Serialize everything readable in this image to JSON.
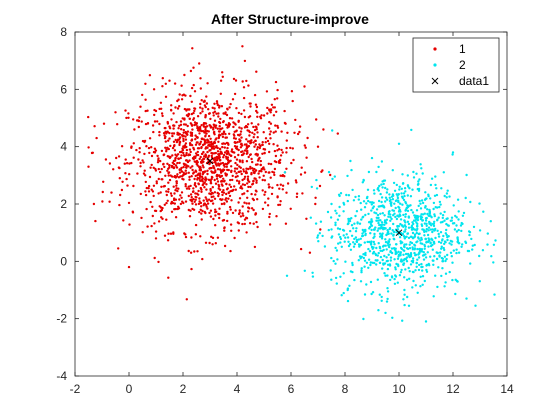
{
  "chart_data": {
    "type": "scatter",
    "title": "After Structure-improve",
    "xlabel": "",
    "ylabel": "",
    "xlim": [
      -2,
      14
    ],
    "ylim": [
      -4,
      8
    ],
    "xticks": [
      -2,
      0,
      2,
      4,
      6,
      8,
      10,
      12,
      14
    ],
    "yticks": [
      -4,
      -2,
      0,
      2,
      4,
      6,
      8
    ],
    "grid": false,
    "legend_position": "top-right",
    "series": [
      {
        "name": "1",
        "color": "#e60000",
        "marker": "dot",
        "count": 1500,
        "center": [
          3.0,
          3.5
        ],
        "spread": [
          1.5,
          1.2
        ],
        "points": [
          [
            -1.5,
            3.3
          ],
          [
            -1.2,
            4.3
          ],
          [
            -1.3,
            2.0
          ],
          [
            0.0,
            -0.2
          ],
          [
            -0.5,
            5.2
          ],
          [
            0.2,
            4.6
          ],
          [
            1.5,
            6.3
          ],
          [
            2.6,
            6.9
          ],
          [
            4.2,
            7.5
          ],
          [
            6.5,
            6.1
          ],
          [
            7.2,
            4.6
          ],
          [
            7.0,
            4.0
          ],
          [
            6.9,
            2.0
          ],
          [
            6.7,
            0.3
          ],
          [
            4.2,
            1.3
          ],
          [
            2.3,
            0.3
          ],
          [
            1.0,
            0.8
          ],
          [
            3.0,
            3.5
          ],
          [
            2.0,
            3.0
          ],
          [
            4.0,
            4.0
          ],
          [
            1.2,
            2.6
          ],
          [
            3.6,
            2.2
          ],
          [
            2.5,
            4.8
          ],
          [
            5.2,
            3.1
          ],
          [
            1.8,
            4.2
          ],
          [
            4.5,
            5.4
          ],
          [
            0.6,
            3.0
          ],
          [
            5.8,
            4.8
          ],
          [
            3.2,
            1.6
          ],
          [
            2.8,
            5.6
          ]
        ]
      },
      {
        "name": "2",
        "color": "#00e5ee",
        "marker": "dot",
        "count": 1000,
        "center": [
          10.0,
          1.0
        ],
        "spread": [
          1.25,
          1.0
        ],
        "points": [
          [
            6.8,
            -0.4
          ],
          [
            7.0,
            0.9
          ],
          [
            7.5,
            2.0
          ],
          [
            8.2,
            3.5
          ],
          [
            9.0,
            3.6
          ],
          [
            10.0,
            4.1
          ],
          [
            12.0,
            3.8
          ],
          [
            13.4,
            1.4
          ],
          [
            12.5,
            -1.3
          ],
          [
            11.0,
            -2.1
          ],
          [
            9.5,
            -1.8
          ],
          [
            8.1,
            -1.0
          ],
          [
            10.0,
            1.0
          ],
          [
            9.0,
            0.5
          ],
          [
            11.0,
            1.5
          ],
          [
            10.5,
            2.5
          ],
          [
            9.5,
            -0.5
          ],
          [
            11.5,
            0.2
          ],
          [
            8.6,
            1.8
          ],
          [
            10.2,
            -1.0
          ]
        ]
      },
      {
        "name": "data1",
        "color": "#000000",
        "marker": "x",
        "points": [
          [
            3.0,
            3.5
          ],
          [
            10.0,
            1.0
          ]
        ]
      }
    ]
  }
}
